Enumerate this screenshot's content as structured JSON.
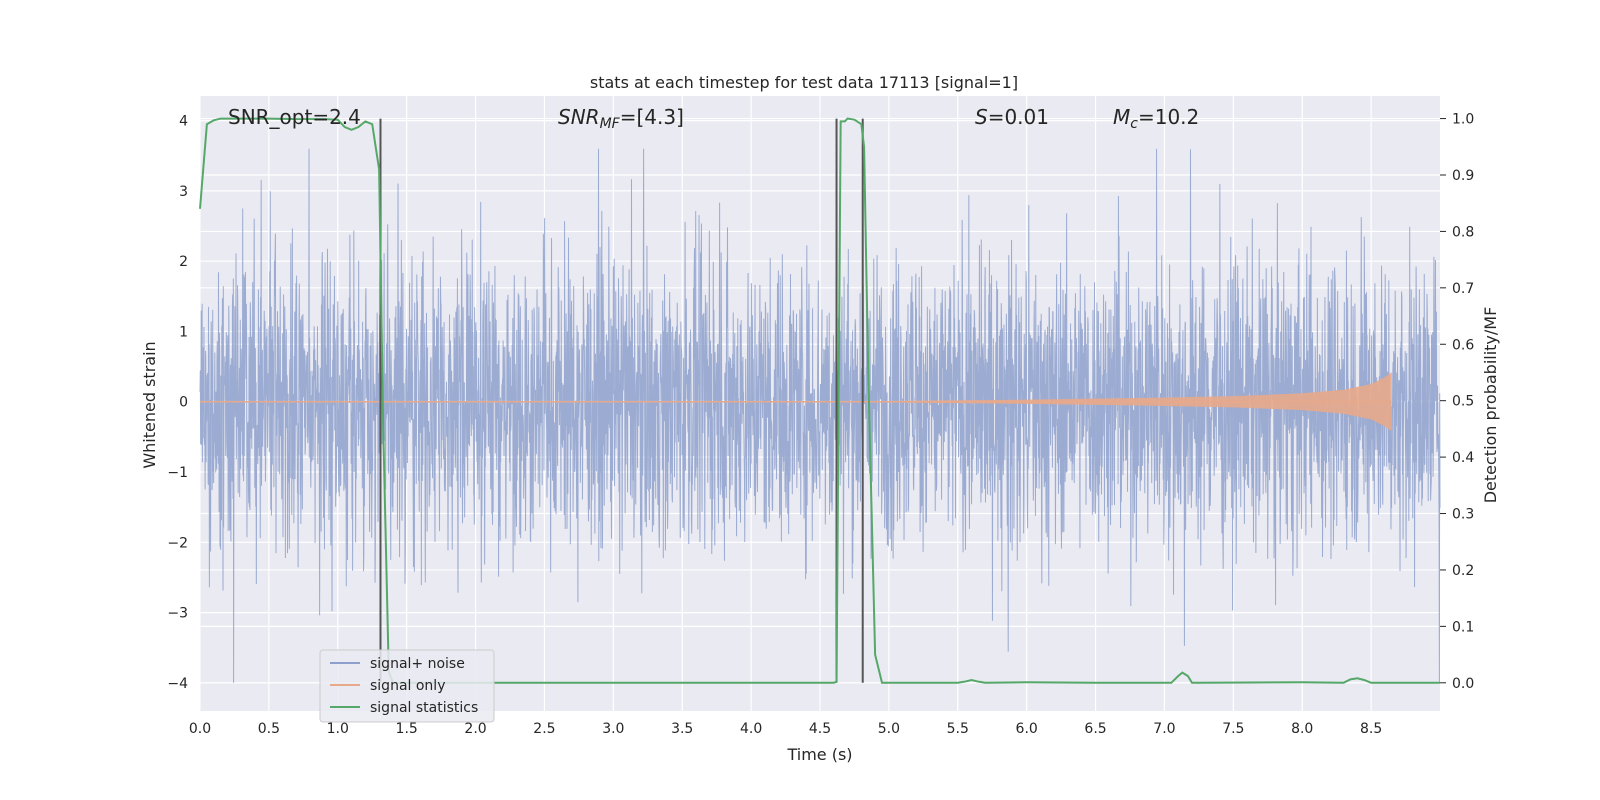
{
  "chart_data": {
    "type": "line",
    "title": "stats at each timestep for test data 17113 [signal=1]",
    "xlabel": "Time (s)",
    "ylabel_left": "Whitened strain",
    "ylabel_right": "Detection probability/MF",
    "xlim": [
      0.0,
      9.0
    ],
    "ylim_left": [
      -4.4,
      4.35
    ],
    "ylim_right": [
      -0.05,
      1.04
    ],
    "xticks": [
      "0.0",
      "0.5",
      "1.0",
      "1.5",
      "2.0",
      "2.5",
      "3.0",
      "3.5",
      "4.0",
      "4.5",
      "5.0",
      "5.5",
      "6.0",
      "6.5",
      "7.0",
      "7.5",
      "8.0",
      "8.5"
    ],
    "yticks_left": [
      "−4",
      "−3",
      "−2",
      "−1",
      "0",
      "1",
      "2",
      "3",
      "4"
    ],
    "yticks_right": [
      "0.0",
      "0.1",
      "0.2",
      "0.3",
      "0.4",
      "0.5",
      "0.6",
      "0.7",
      "0.8",
      "0.9",
      "1.0"
    ],
    "annotations": {
      "snr_opt": "SNR_opt=2.4",
      "snr_mf_main": "SNR",
      "snr_mf_sub": "MF",
      "snr_mf_value": "=[4.3]",
      "s_italic": "S",
      "s_value": "=0.01",
      "mc_main": "M",
      "mc_sub": "c",
      "mc_value": "=10.2"
    },
    "legend": {
      "position": "lower-left",
      "entries": [
        "signal+ noise",
        "signal only",
        "signal statistics"
      ]
    },
    "colors": {
      "noise": "#8da0cb",
      "signal": "#e8a98a",
      "stats": "#55a868",
      "vline": "#555555",
      "background": "#eaeaf2",
      "grid": "#ffffff"
    },
    "vertical_lines_x": [
      1.31,
      4.62,
      4.81
    ],
    "series": [
      {
        "name": "signal statistics",
        "x": [
          0.0,
          0.05,
          0.1,
          0.15,
          0.2,
          0.3,
          0.5,
          0.7,
          0.9,
          1.0,
          1.05,
          1.1,
          1.15,
          1.2,
          1.25,
          1.3,
          1.33,
          1.37,
          1.4,
          2.0,
          3.0,
          4.0,
          4.55,
          4.6,
          4.62,
          4.65,
          4.68,
          4.7,
          4.75,
          4.8,
          4.82,
          4.85,
          4.9,
          4.95,
          5.0,
          5.5,
          5.55,
          5.6,
          5.65,
          5.7,
          6.0,
          6.5,
          7.0,
          7.05,
          7.1,
          7.13,
          7.17,
          7.2,
          7.25,
          8.0,
          8.3,
          8.35,
          8.4,
          8.45,
          8.5,
          9.0
        ],
        "y": [
          0.84,
          0.99,
          0.997,
          1.0,
          1.0,
          1.0,
          1.0,
          0.999,
          0.999,
          0.998,
          0.985,
          0.98,
          0.985,
          0.995,
          0.99,
          0.91,
          0.45,
          0.02,
          0.0,
          0.0,
          0.0,
          0.0,
          0.0,
          0.0,
          0.002,
          0.995,
          0.995,
          1.0,
          0.998,
          0.99,
          0.95,
          0.55,
          0.05,
          0.0,
          0.0,
          0.0,
          0.002,
          0.005,
          0.002,
          0.0,
          0.001,
          0.0,
          0.0,
          0.0,
          0.012,
          0.018,
          0.012,
          0.0,
          0.0,
          0.001,
          0.0,
          0.006,
          0.008,
          0.005,
          0.0,
          0.0
        ]
      }
    ],
    "noise_series": {
      "name": "signal+ noise",
      "samples": 4096,
      "approx_range": [
        -4.0,
        3.6
      ],
      "note_values": "high-frequency whitened strain, dense fill between approx -1.6 and 1.6 with spikes"
    },
    "signal_series": {
      "name": "signal only",
      "envelope_x": [
        5.0,
        6.0,
        7.0,
        7.5,
        8.0,
        8.3,
        8.5,
        8.6,
        8.65
      ],
      "envelope_y": [
        0.01,
        0.03,
        0.06,
        0.08,
        0.12,
        0.17,
        0.25,
        0.35,
        0.42
      ]
    }
  }
}
